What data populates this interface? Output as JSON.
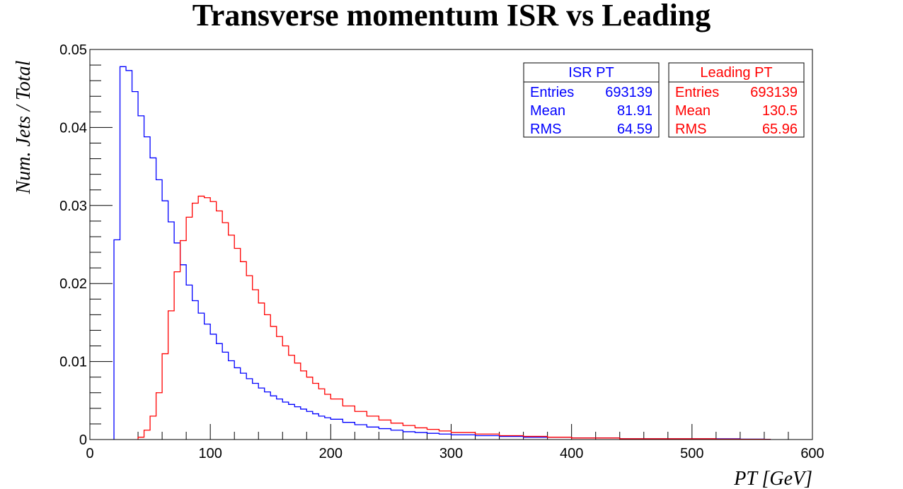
{
  "chart_data": {
    "type": "histogram",
    "title": "Transverse momentum ISR vs Leading",
    "xlabel": "PT [GeV]",
    "ylabel": "Num. Jets / Total",
    "xlim": [
      0,
      600
    ],
    "ylim": [
      0,
      0.05
    ],
    "x_ticks": [
      "0",
      "100",
      "200",
      "300",
      "400",
      "500",
      "600"
    ],
    "y_ticks": [
      "0",
      "0.01",
      "0.02",
      "0.03",
      "0.04",
      "0.05"
    ],
    "bin_width": 5,
    "series": [
      {
        "name": "ISR PT",
        "color": "#0000ff",
        "x": [
          20,
          25,
          30,
          35,
          40,
          45,
          50,
          55,
          60,
          65,
          70,
          75,
          80,
          85,
          90,
          95,
          100,
          105,
          110,
          115,
          120,
          125,
          130,
          135,
          140,
          145,
          150,
          155,
          160,
          165,
          170,
          175,
          180,
          185,
          190,
          195,
          200,
          210,
          220,
          230,
          240,
          250,
          260,
          270,
          280,
          290,
          300,
          320,
          340,
          360,
          380,
          400,
          420,
          440,
          460,
          480,
          500,
          520,
          540,
          560
        ],
        "values": [
          0.0256,
          0.0478,
          0.0473,
          0.0446,
          0.0415,
          0.0388,
          0.0361,
          0.0333,
          0.0306,
          0.0279,
          0.0252,
          0.0224,
          0.0198,
          0.0178,
          0.0162,
          0.0148,
          0.0135,
          0.0123,
          0.0112,
          0.0101,
          0.0092,
          0.0085,
          0.0078,
          0.0072,
          0.0066,
          0.0061,
          0.0056,
          0.0052,
          0.0048,
          0.0045,
          0.0042,
          0.0039,
          0.0036,
          0.0033,
          0.003,
          0.0028,
          0.0026,
          0.0022,
          0.0019,
          0.0016,
          0.0014,
          0.0012,
          0.001,
          0.0009,
          0.0008,
          0.0007,
          0.0006,
          0.0005,
          0.0004,
          0.0003,
          0.0003,
          0.0002,
          0.0002,
          0.0001,
          0.0001,
          0.0001,
          0.0001,
          0.0001,
          5e-05,
          3e-05
        ]
      },
      {
        "name": "Leading PT",
        "color": "#ff0000",
        "x": [
          40,
          45,
          50,
          55,
          60,
          65,
          70,
          75,
          80,
          85,
          90,
          95,
          100,
          105,
          110,
          115,
          120,
          125,
          130,
          135,
          140,
          145,
          150,
          155,
          160,
          165,
          170,
          175,
          180,
          185,
          190,
          195,
          200,
          210,
          220,
          230,
          240,
          250,
          260,
          270,
          280,
          290,
          300,
          320,
          340,
          360,
          380,
          400,
          420,
          440,
          460,
          480,
          500,
          520,
          540,
          560
        ],
        "values": [
          0.0003,
          0.0012,
          0.003,
          0.006,
          0.011,
          0.0165,
          0.0215,
          0.0255,
          0.0285,
          0.0303,
          0.0312,
          0.031,
          0.0305,
          0.0293,
          0.0278,
          0.0262,
          0.0245,
          0.0228,
          0.021,
          0.0192,
          0.0175,
          0.016,
          0.0145,
          0.0132,
          0.012,
          0.0108,
          0.0098,
          0.0088,
          0.008,
          0.0072,
          0.0065,
          0.0058,
          0.0052,
          0.0043,
          0.0036,
          0.003,
          0.0025,
          0.0021,
          0.0018,
          0.0015,
          0.0013,
          0.0011,
          0.0009,
          0.0007,
          0.0005,
          0.0004,
          0.0003,
          0.0002,
          0.0002,
          0.0001,
          0.0001,
          0.0001,
          0.0001,
          5e-05,
          3e-05,
          2e-05
        ]
      }
    ],
    "stats_boxes": [
      {
        "title": "ISR PT",
        "color": "#0000ff",
        "rows": [
          {
            "label": "Entries",
            "value": "693139"
          },
          {
            "label": "Mean",
            "value": "81.91"
          },
          {
            "label": "RMS",
            "value": "64.59"
          }
        ]
      },
      {
        "title": "Leading PT",
        "color": "#ff0000",
        "rows": [
          {
            "label": "Entries",
            "value": "693139"
          },
          {
            "label": "Mean",
            "value": "130.5"
          },
          {
            "label": "RMS",
            "value": "65.96"
          }
        ]
      }
    ]
  }
}
